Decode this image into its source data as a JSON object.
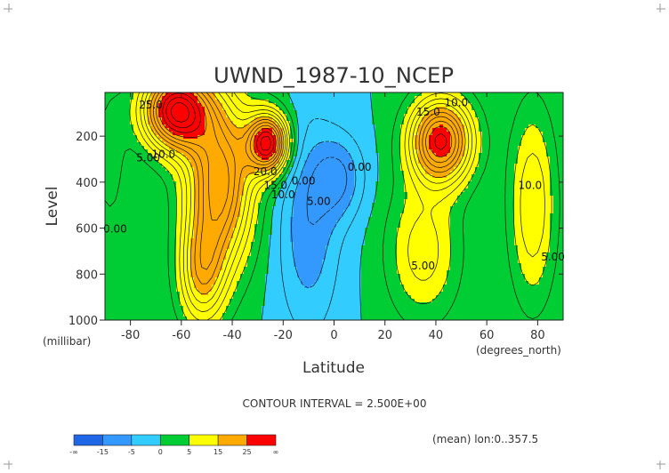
{
  "chart_data": {
    "type": "heatmap",
    "title": "UWND_1987-10_NCEP",
    "xlabel": "Latitude",
    "ylabel": "Level",
    "x_units": "(degrees_north)",
    "y_units": "(millibar)",
    "xlim": [
      -90,
      90
    ],
    "ylim": [
      1000,
      10
    ],
    "x_ticks": [
      -80,
      -60,
      -40,
      -20,
      0,
      20,
      40,
      60,
      80
    ],
    "x_tick_labels": [
      "-80",
      "-60",
      "-40",
      "-20",
      "0",
      "20",
      "40",
      "60",
      "80"
    ],
    "y_ticks": [
      200,
      400,
      600,
      800,
      1000
    ],
    "y_tick_labels": [
      "200",
      "400",
      "600",
      "800",
      "1000"
    ],
    "contour_interval_text": "CONTOUR INTERVAL = 2.500E+00",
    "footnote": "(mean) lon:0..357.5",
    "colorbar": {
      "colors": [
        "#1f66e6",
        "#3399ff",
        "#33ccff",
        "#00cc33",
        "#ffff00",
        "#ffaa00",
        "#ff0000"
      ],
      "tick_labels": [
        "-∞",
        "-15",
        "-5",
        "0",
        "5",
        "15",
        "25",
        "∞"
      ]
    },
    "contour_labels": [
      {
        "text": "25.0",
        "lat": -72,
        "lev": 80
      },
      {
        "text": "10.0",
        "lat": -67,
        "lev": 295
      },
      {
        "text": "5.00",
        "lat": -73,
        "lev": 310
      },
      {
        "text": "0.00",
        "lat": -86,
        "lev": 620
      },
      {
        "text": "20.0",
        "lat": -27,
        "lev": 370
      },
      {
        "text": "15.0",
        "lat": -23,
        "lev": 430
      },
      {
        "text": "10.0",
        "lat": -20,
        "lev": 470
      },
      {
        "text": "0.00",
        "lat": -12,
        "lev": 410
      },
      {
        "text": "5.00",
        "lat": -6,
        "lev": 500
      },
      {
        "text": "0.00",
        "lat": 10,
        "lev": 350
      },
      {
        "text": "15.0",
        "lat": 37,
        "lev": 110
      },
      {
        "text": "10.0",
        "lat": 48,
        "lev": 70
      },
      {
        "text": "5.00",
        "lat": 35,
        "lev": 780
      },
      {
        "text": "10.0",
        "lat": 77,
        "lev": 430
      },
      {
        "text": "5.00",
        "lat": 86,
        "lev": 740
      }
    ]
  }
}
